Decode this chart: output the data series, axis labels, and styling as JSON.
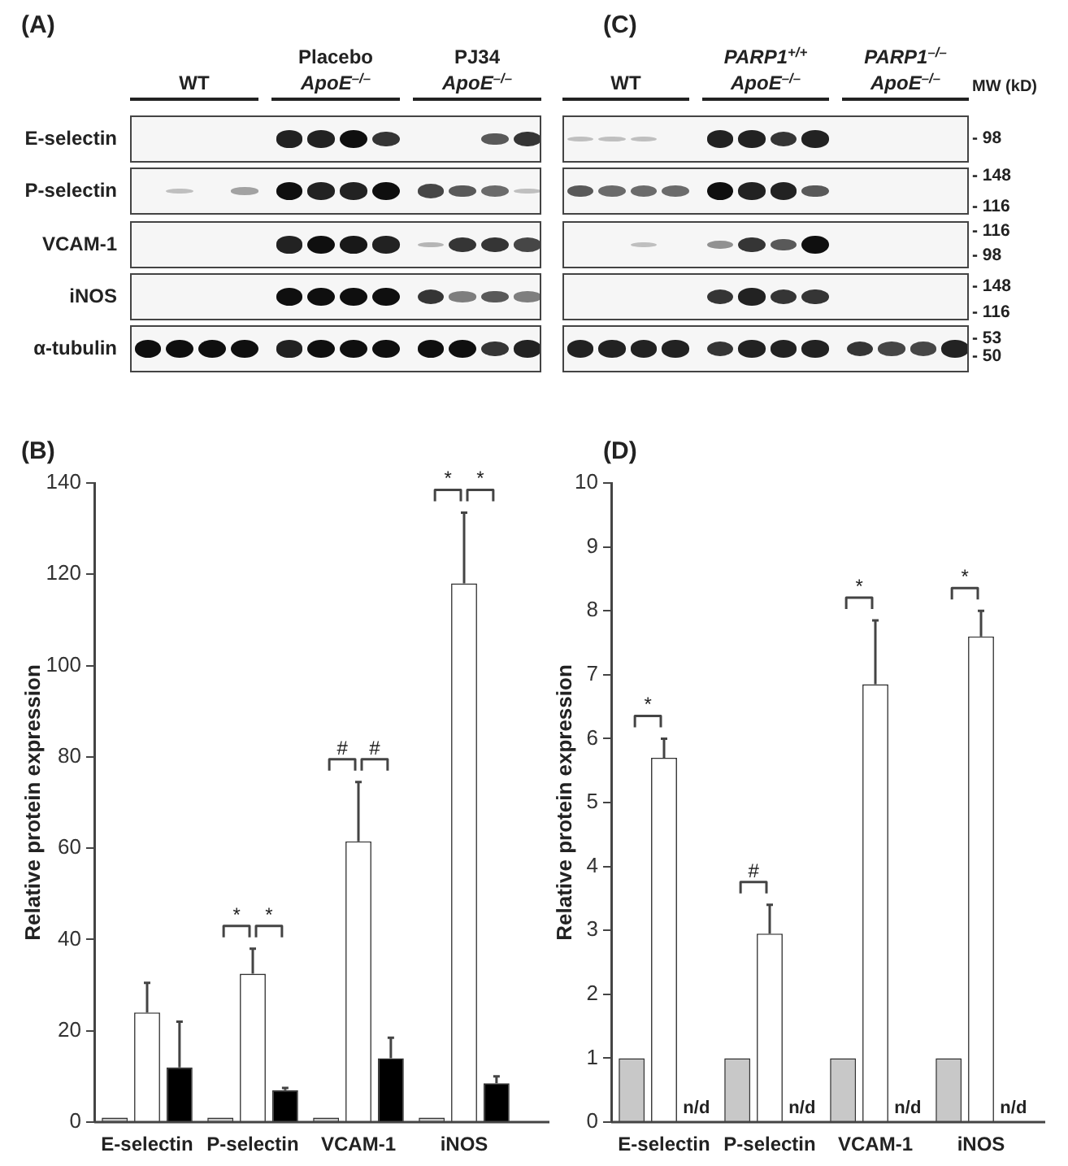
{
  "chart_data": [
    {
      "type": "other",
      "title": "(A)",
      "categories": [
        "WT",
        "Placebo\nApoE$^{–/–}$",
        "PJ34\nApoE$^{–/–}$"
      ],
      "y_categories": [
        "E-selectin",
        "P-selectin",
        "VCAM-1",
        "iNOS",
        "α-tubulin"
      ]
    },
    {
      "type": "other",
      "title": "(C)",
      "categories": [
        "WT",
        "PARP1$^{+/+}$\nApoE$^{–/–}$",
        "PARP1$^{–/–}$\nApoE$^{–/–}$"
      ],
      "y2label": "MW (kD)",
      "annotations": [
        "- 98",
        "- 148",
        "- 116",
        "- 116",
        "- 98",
        "- 148",
        "- 116",
        "- 53",
        "- 50"
      ]
    },
    {
      "type": "bar",
      "title": "(B)",
      "ylabel": "Relative protein expression",
      "categories": [
        "E-selectin",
        "P-selectin",
        "VCAM-1",
        "iNOS"
      ],
      "series": [
        {
          "color": "#c8c8c8",
          "values": [
            1,
            1,
            1,
            1
          ]
        },
        {
          "color": "#ffffff",
          "values": [
            24,
            32.5,
            61.5,
            118
          ],
          "errors": [
            [
              24,
              30.5
            ],
            [
              32.5,
              38
            ],
            [
              61.5,
              74.5
            ],
            [
              118,
              133.5
            ]
          ]
        },
        {
          "color": "#000000",
          "values": [
            12,
            7,
            14,
            8.5
          ],
          "errors": [
            [
              12,
              22
            ],
            [
              7,
              7.5
            ],
            [
              14,
              18.5
            ],
            [
              8.5,
              10
            ]
          ]
        }
      ],
      "ylim": [
        0,
        140
      ],
      "yticks": [
        0,
        20,
        40,
        60,
        80,
        100,
        120,
        140
      ],
      "grid": false,
      "legend": false,
      "annotations": [
        "*",
        "*",
        "#",
        "#",
        "*",
        "*"
      ]
    },
    {
      "type": "bar",
      "title": "(D)",
      "ylabel": "Relative protein expression",
      "categories": [
        "E-selectin",
        "P-selectin",
        "VCAM-1",
        "iNOS"
      ],
      "series": [
        {
          "color": "#c8c8c8",
          "values": [
            1,
            1,
            1,
            1
          ]
        },
        {
          "color": "#ffffff",
          "values": [
            5.7,
            2.95,
            6.85,
            7.6
          ],
          "errors": [
            [
              5.7,
              6
            ],
            [
              2.95,
              3.4
            ],
            [
              6.85,
              7.85
            ],
            [
              7.6,
              8
            ]
          ]
        },
        {
          "values": [
            null,
            null,
            null,
            null
          ],
          "value_labels": [
            "n/d",
            "n/d",
            "n/d",
            "n/d"
          ]
        }
      ],
      "ylim": [
        0,
        10
      ],
      "yticks": [
        0,
        1,
        2,
        3,
        4,
        5,
        6,
        7,
        8,
        9,
        10
      ],
      "grid": false,
      "legend": false,
      "annotations": [
        "*",
        "#",
        "*",
        "*"
      ]
    }
  ]
}
